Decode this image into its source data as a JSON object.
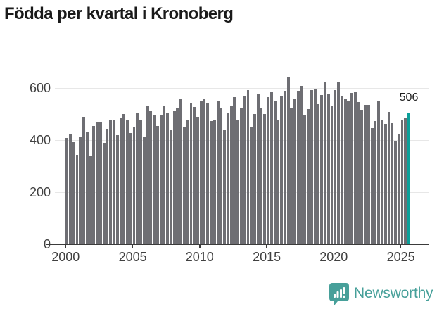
{
  "title": "Födda per kvartal i Kronoberg",
  "chart_data": {
    "type": "bar",
    "title": "Födda per kvartal i Kronoberg",
    "xlabel": "",
    "ylabel": "",
    "frequency": "quarterly",
    "x_start": "2000-Q1",
    "x_end": "2025-Q3",
    "x_ticks": [
      2000,
      2005,
      2010,
      2015,
      2020,
      2025
    ],
    "y_ticks": [
      0,
      200,
      400,
      600
    ],
    "ylim": [
      0,
      660
    ],
    "grid": "horizontal",
    "legend": "none",
    "series": [
      {
        "name": "Födda",
        "values": [
          408,
          425,
          392,
          345,
          415,
          490,
          432,
          340,
          455,
          467,
          470,
          390,
          444,
          476,
          478,
          420,
          485,
          500,
          480,
          428,
          449,
          505,
          478,
          414,
          532,
          515,
          497,
          455,
          494,
          530,
          503,
          440,
          512,
          521,
          560,
          453,
          475,
          540,
          526,
          489,
          552,
          559,
          543,
          473,
          477,
          550,
          523,
          440,
          505,
          532,
          566,
          480,
          525,
          568,
          593,
          453,
          500,
          575,
          525,
          500,
          566,
          584,
          552,
          480,
          570,
          590,
          640,
          525,
          557,
          590,
          608,
          494,
          520,
          593,
          597,
          539,
          572,
          624,
          579,
          531,
          591,
          624,
          570,
          558,
          552,
          582,
          583,
          545,
          516,
          536,
          536,
          446,
          473,
          548,
          476,
          462,
          509,
          465,
          399,
          424,
          480,
          484,
          506
        ]
      }
    ],
    "highlight_index": 102,
    "highlight_value": 506,
    "highlight_label": "506",
    "colors": {
      "bar": "#6E6E73",
      "highlight_bar": "#0BA09A",
      "gridline": "#E7E7E7",
      "axis": "#3B3B3B",
      "tick_text": "#404040",
      "title_text": "#1A1A1A"
    }
  },
  "footer": {
    "brand": "Newsworthy",
    "brand_color": "#47A09A",
    "logo_icon": "newsworthy-bar-chart-bubble-icon"
  }
}
